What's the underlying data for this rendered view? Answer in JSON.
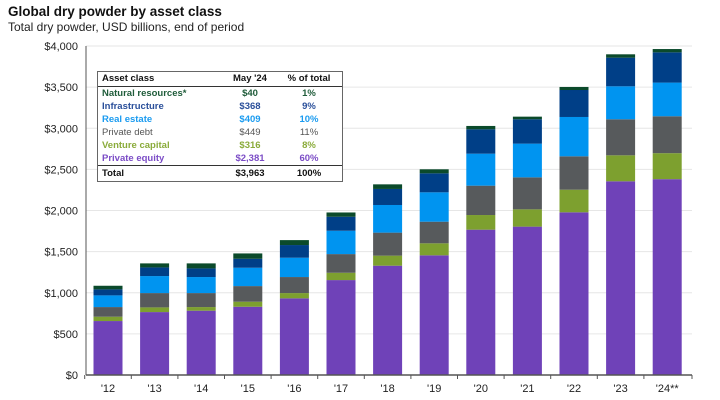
{
  "title": "Global dry powder by asset class",
  "subtitle": "Total dry powder, USD billions, end of period",
  "table": {
    "headers": [
      "Asset class",
      "May '24",
      "% of total"
    ],
    "rows": [
      {
        "label": "Natural resources*",
        "value": "$40",
        "pct": "1%",
        "color": "#1f5c3a"
      },
      {
        "label": "Infrastructure",
        "value": "$368",
        "pct": "9%",
        "color": "#2a4f9a"
      },
      {
        "label": "Real estate",
        "value": "$409",
        "pct": "10%",
        "color": "#1a9bf0"
      },
      {
        "label": "Private debt",
        "value": "$449",
        "pct": "11%",
        "color": "#555555"
      },
      {
        "label": "Venture capital",
        "value": "$316",
        "pct": "8%",
        "color": "#8aab3a"
      },
      {
        "label": "Private equity",
        "value": "$2,381",
        "pct": "60%",
        "color": "#7b4cc6"
      }
    ],
    "total": {
      "label": "Total",
      "value": "$3,963",
      "pct": "100%"
    }
  },
  "chart_data": {
    "type": "bar",
    "stacked": true,
    "title": "Global dry powder by asset class",
    "subtitle": "Total dry powder, USD billions, end of period",
    "categories": [
      "'12",
      "'13",
      "'14",
      "'15",
      "'16",
      "'17",
      "'18",
      "'19",
      "'20",
      "'21",
      "'22",
      "'23",
      "'24**"
    ],
    "ylim": [
      0,
      4000
    ],
    "yticks": [
      "$0",
      "$500",
      "$1,000",
      "$1,500",
      "$2,000",
      "$2,500",
      "$3,000",
      "$3,500",
      "$4,000"
    ],
    "ytick_values": [
      0,
      500,
      1000,
      1500,
      2000,
      2500,
      3000,
      3500,
      4000
    ],
    "grid": true,
    "series": [
      {
        "name": "Private equity",
        "color": "#6f42b8",
        "values": [
          656,
          765,
          782,
          830,
          932,
          1154,
          1329,
          1455,
          1767,
          1804,
          1978,
          2355,
          2381
        ]
      },
      {
        "name": "Venture capital",
        "color": "#7da02f",
        "values": [
          53,
          57,
          44,
          61,
          64,
          89,
          122,
          146,
          178,
          210,
          275,
          316,
          316
        ]
      },
      {
        "name": "Private debt",
        "color": "#575a5c",
        "values": [
          117,
          174,
          170,
          190,
          195,
          227,
          280,
          263,
          357,
          389,
          406,
          438,
          449
        ]
      },
      {
        "name": "Real estate",
        "color": "#0094f0",
        "values": [
          142,
          207,
          195,
          223,
          235,
          284,
          336,
          357,
          389,
          410,
          478,
          401,
          409
        ]
      },
      {
        "name": "Infrastructure",
        "color": "#003f87",
        "values": [
          73,
          105,
          105,
          109,
          154,
          170,
          195,
          231,
          296,
          296,
          328,
          348,
          368
        ]
      },
      {
        "name": "Natural resources*",
        "color": "#0b4a2b",
        "values": [
          44,
          49,
          61,
          65,
          60,
          52,
          56,
          49,
          41,
          32,
          37,
          41,
          40
        ]
      }
    ]
  }
}
